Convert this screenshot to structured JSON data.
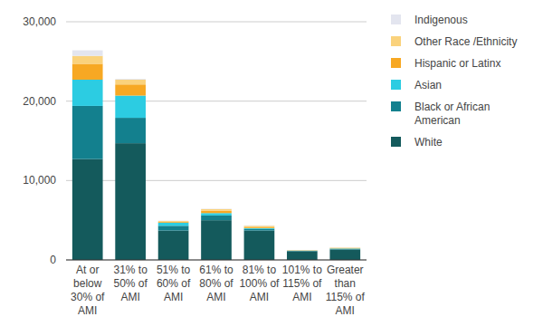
{
  "chart_data": {
    "type": "bar",
    "stacked": true,
    "grid": true,
    "legend": "right",
    "categories": [
      "At or below 30% of AMI",
      "31% to 50% of AMI",
      "51% to 60% of AMI",
      "61% to 80% of AMI",
      "81% to 100% of AMI",
      "101% to 115% of AMI",
      "Greater than 115% of AMI"
    ],
    "series": [
      {
        "name": "White",
        "color": "#145a5c",
        "values": [
          12700,
          14700,
          3700,
          5000,
          3700,
          1100,
          1300
        ]
      },
      {
        "name": "Black or African American",
        "color": "#13808e",
        "values": [
          6700,
          3200,
          600,
          600,
          200,
          50,
          100
        ]
      },
      {
        "name": "Asian",
        "color": "#2ccce2",
        "values": [
          3300,
          2800,
          400,
          300,
          100,
          30,
          50
        ]
      },
      {
        "name": "Hispanic or Latinx",
        "color": "#f7a823",
        "values": [
          2000,
          1400,
          100,
          300,
          100,
          30,
          50
        ]
      },
      {
        "name": "Other Race /Ethnicity",
        "color": "#fad27c",
        "values": [
          1000,
          600,
          100,
          200,
          200,
          30,
          50
        ]
      },
      {
        "name": "Indigenous",
        "color": "#e3e5ef",
        "values": [
          700,
          100,
          50,
          50,
          50,
          10,
          20
        ]
      }
    ],
    "ylim": [
      0,
      30000
    ],
    "yticks": [
      0,
      {
        "value": 10000,
        "label": "10,000"
      },
      {
        "value": 20000,
        "label": "20,000"
      },
      {
        "value": 30000,
        "label": "30,000"
      }
    ]
  }
}
